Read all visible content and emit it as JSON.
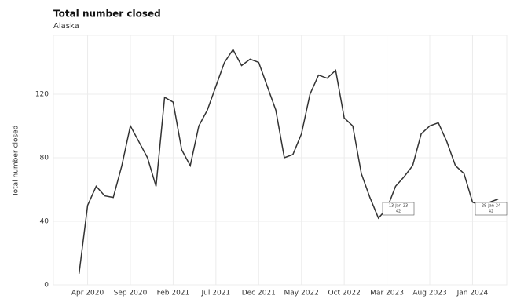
{
  "chart_data": {
    "type": "line",
    "title": "Total number closed",
    "subtitle": "Alaska",
    "y_label": "Total number closed",
    "x": [
      "2020-03",
      "2020-04",
      "2020-05",
      "2020-06",
      "2020-07",
      "2020-08",
      "2020-09",
      "2020-10",
      "2020-11",
      "2020-12",
      "2021-01",
      "2021-02",
      "2021-03",
      "2021-04",
      "2021-05",
      "2021-06",
      "2021-07",
      "2021-08",
      "2021-09",
      "2021-10",
      "2021-11",
      "2021-12",
      "2022-01",
      "2022-02",
      "2022-03",
      "2022-04",
      "2022-05",
      "2022-06",
      "2022-07",
      "2022-08",
      "2022-09",
      "2022-10",
      "2022-11",
      "2022-12",
      "2023-01",
      "2023-02",
      "2023-03",
      "2023-04",
      "2023-05",
      "2023-06",
      "2023-07",
      "2023-08",
      "2023-09",
      "2023-10",
      "2023-11",
      "2023-12",
      "2024-01",
      "2024-02",
      "2024-03",
      "2024-04"
    ],
    "series": [
      {
        "name": "Total number closed",
        "color": "#333333",
        "values": [
          7,
          50,
          62,
          56,
          55,
          75,
          100,
          90,
          80,
          62,
          118,
          115,
          85,
          75,
          100,
          110,
          125,
          140,
          148,
          138,
          142,
          140,
          125,
          110,
          80,
          82,
          95,
          120,
          132,
          130,
          135,
          105,
          100,
          70,
          55,
          42,
          48,
          62,
          68,
          75,
          95,
          100,
          102,
          90,
          75,
          70,
          52,
          50,
          52,
          54
        ]
      }
    ],
    "xlim": [
      "2019-12",
      "2024-05"
    ],
    "xticks": [
      {
        "value": "2020-04",
        "label": "Apr 2020"
      },
      {
        "value": "2020-09",
        "label": "Sep 2020"
      },
      {
        "value": "2021-02",
        "label": "Feb 2021"
      },
      {
        "value": "2021-07",
        "label": "Jul 2021"
      },
      {
        "value": "2021-12",
        "label": "Dec 2021"
      },
      {
        "value": "2022-05",
        "label": "May 2022"
      },
      {
        "value": "2022-10",
        "label": "Oct 2022"
      },
      {
        "value": "2023-03",
        "label": "Mar 2023"
      },
      {
        "value": "2023-08",
        "label": "Aug 2023"
      },
      {
        "value": "2024-01",
        "label": "Jan 2024"
      }
    ],
    "ylim": [
      0,
      157
    ],
    "yticks": [
      0,
      40,
      80,
      120
    ],
    "grid": true,
    "annotations": [
      {
        "date": "13-Jan-23",
        "text": "42"
      },
      {
        "date": "28-Jan-24",
        "text": "42"
      }
    ]
  }
}
